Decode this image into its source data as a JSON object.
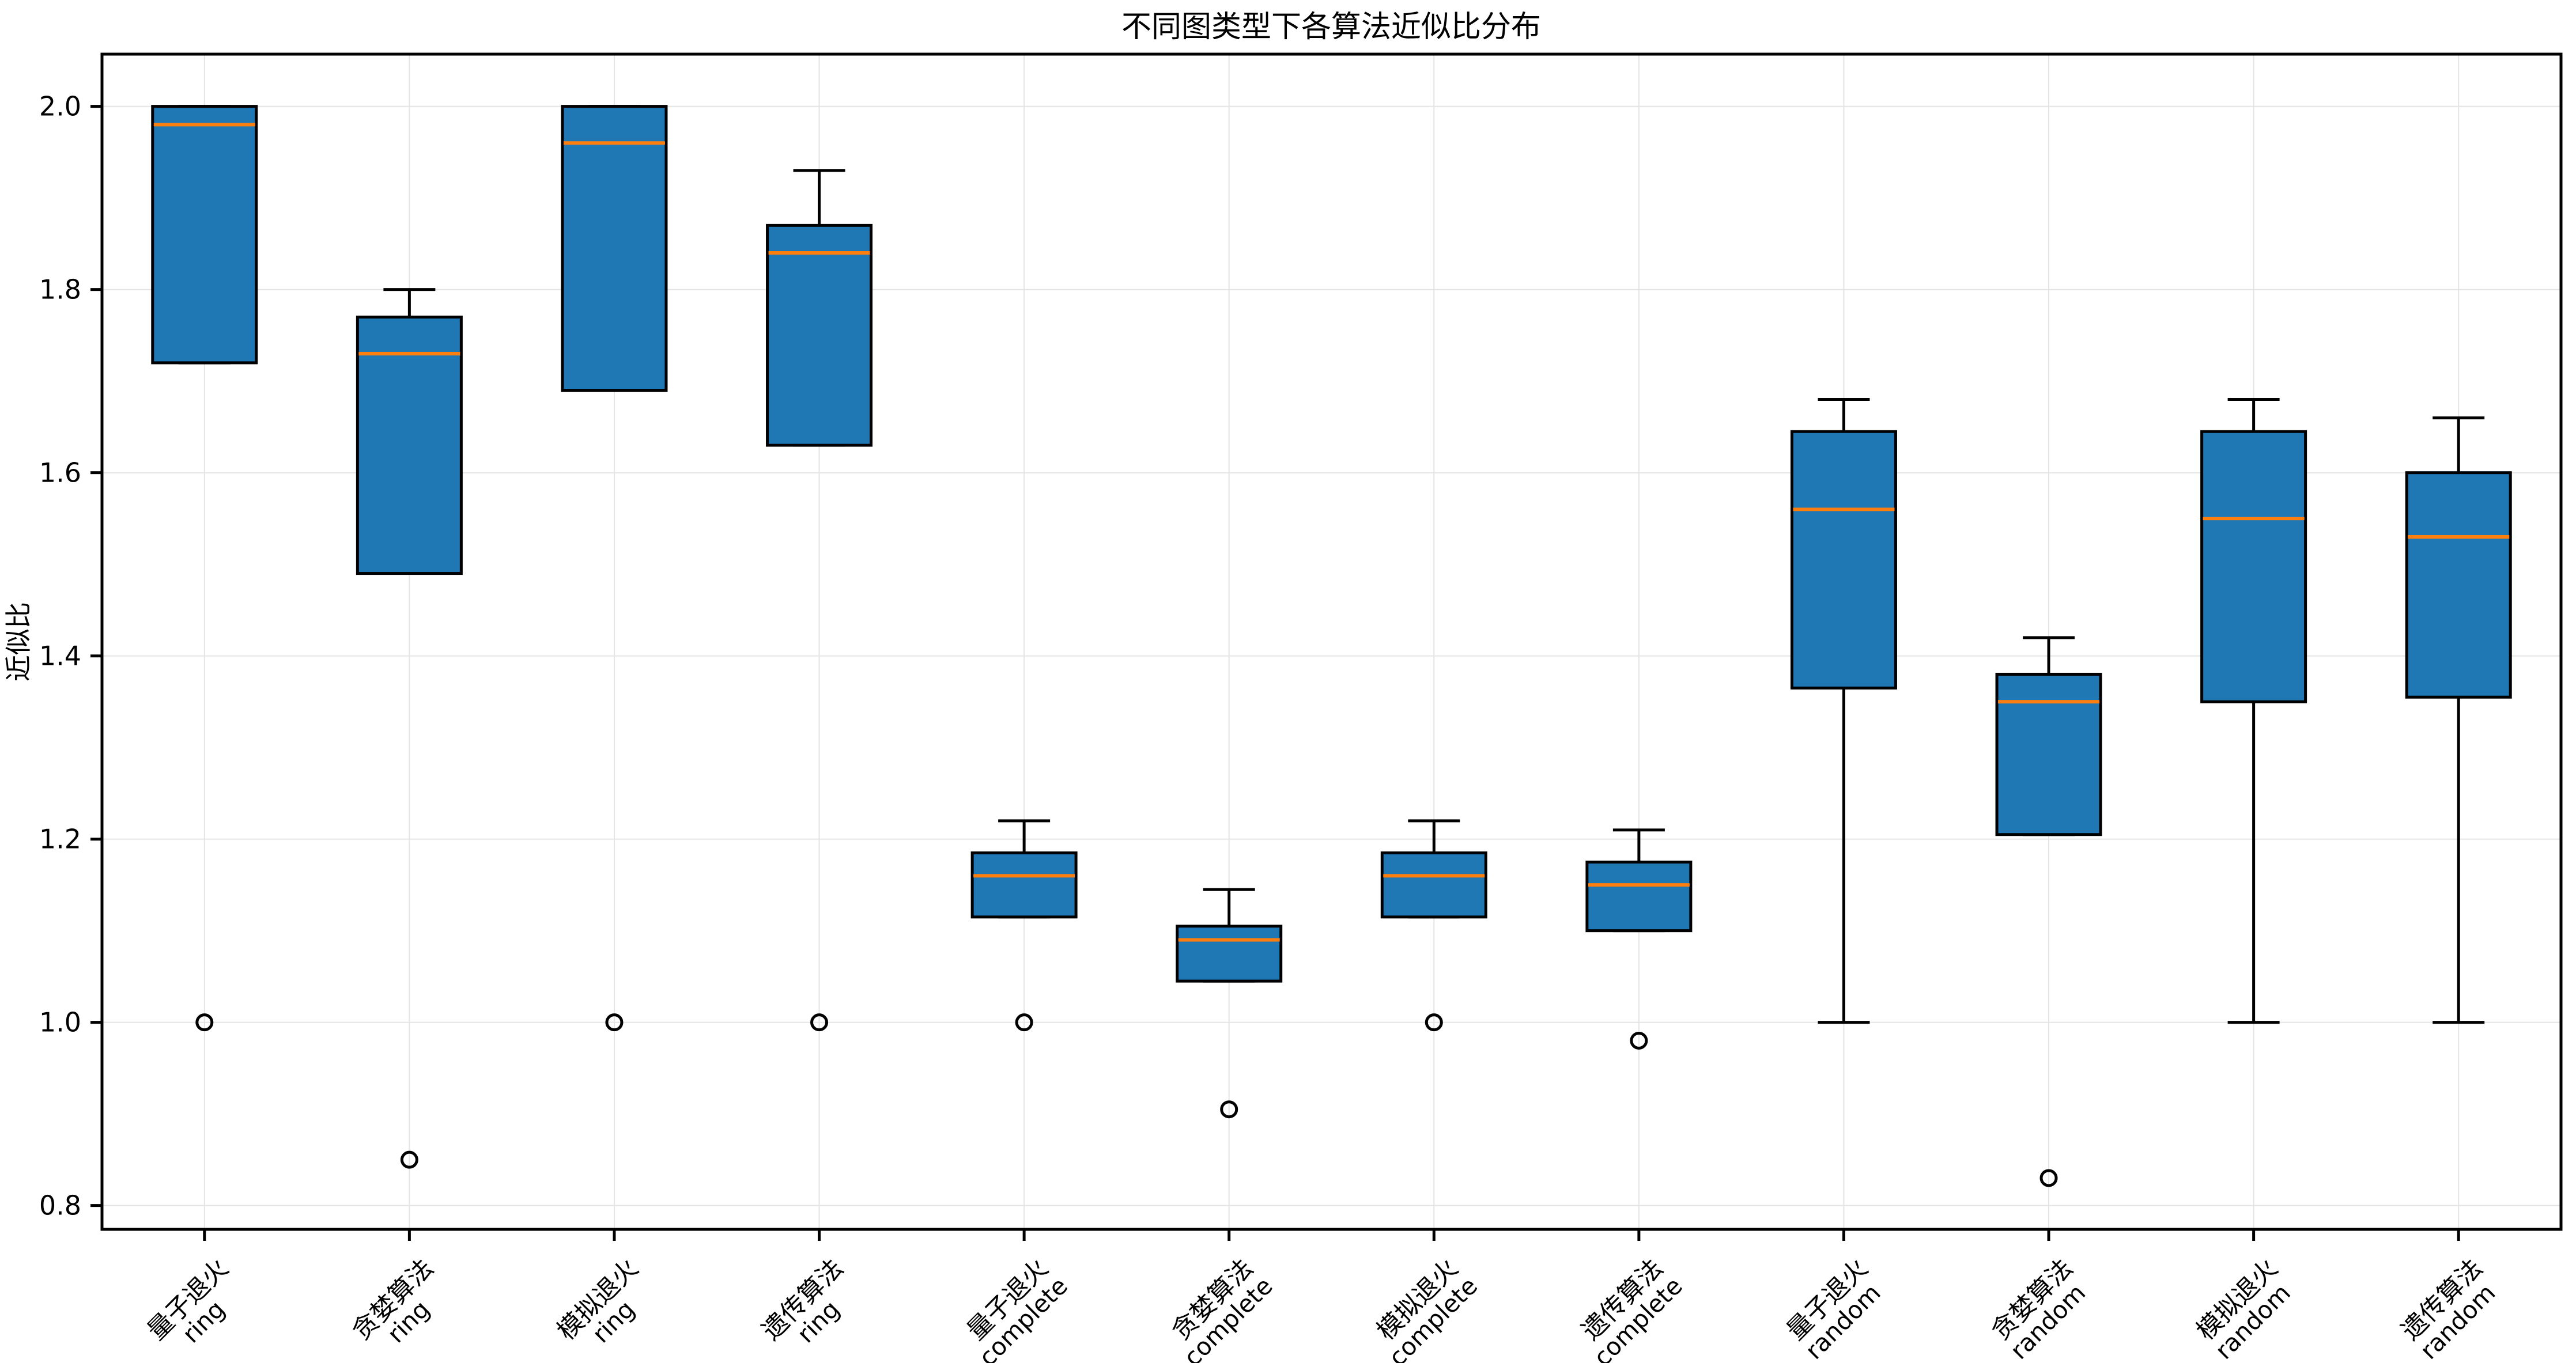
{
  "title": "不同图类型下各算法近似比分布",
  "ylabel": "近似比",
  "colors": {
    "box_fill": "#1f77b4",
    "median_line": "#ff7f0e",
    "box_edge": "#000000",
    "whisker": "#000000",
    "outlier_edge": "#000000",
    "grid": "#e4e4e4",
    "spine": "#000000",
    "background": "#ffffff"
  },
  "chart_data": {
    "type": "boxplot",
    "title": "不同图类型下各算法近似比分布",
    "xlabel": "",
    "ylabel": "近似比",
    "ylim": [
      0.774,
      2.057
    ],
    "yticks": [
      0.8,
      1.0,
      1.2,
      1.4,
      1.6,
      1.8,
      2.0
    ],
    "ytick_labels": [
      "0.8",
      "1.0",
      "1.2",
      "1.4",
      "1.6",
      "1.8",
      "2.0"
    ],
    "grid": true,
    "legend": false,
    "categories": [
      "量子退火 ring",
      "贪婪算法 ring",
      "模拟退火 ring",
      "遗传算法 ring",
      "量子退火 complete",
      "贪婪算法 complete",
      "模拟退火 complete",
      "遗传算法 complete",
      "量子退火 random",
      "贪婪算法 random",
      "模拟退火 random",
      "遗传算法 random"
    ],
    "boxes": [
      {
        "label_line1": "量子退火",
        "label_line2": "ring",
        "whisker_low": 1.72,
        "q1": 1.72,
        "median": 1.98,
        "q3": 2.0,
        "whisker_high": 2.0,
        "outliers": [
          1.0
        ]
      },
      {
        "label_line1": "贪婪算法",
        "label_line2": "ring",
        "whisker_low": 1.49,
        "q1": 1.49,
        "median": 1.73,
        "q3": 1.77,
        "whisker_high": 1.8,
        "outliers": [
          0.85
        ]
      },
      {
        "label_line1": "模拟退火",
        "label_line2": "ring",
        "whisker_low": 1.69,
        "q1": 1.69,
        "median": 1.96,
        "q3": 2.0,
        "whisker_high": 2.0,
        "outliers": [
          1.0
        ]
      },
      {
        "label_line1": "遗传算法",
        "label_line2": "ring",
        "whisker_low": 1.63,
        "q1": 1.63,
        "median": 1.84,
        "q3": 1.87,
        "whisker_high": 1.93,
        "outliers": [
          1.0
        ]
      },
      {
        "label_line1": "量子退火",
        "label_line2": "complete",
        "whisker_low": 1.115,
        "q1": 1.115,
        "median": 1.16,
        "q3": 1.185,
        "whisker_high": 1.22,
        "outliers": [
          1.0
        ]
      },
      {
        "label_line1": "贪婪算法",
        "label_line2": "complete",
        "whisker_low": 1.045,
        "q1": 1.045,
        "median": 1.09,
        "q3": 1.105,
        "whisker_high": 1.145,
        "outliers": [
          0.905
        ]
      },
      {
        "label_line1": "模拟退火",
        "label_line2": "complete",
        "whisker_low": 1.115,
        "q1": 1.115,
        "median": 1.16,
        "q3": 1.185,
        "whisker_high": 1.22,
        "outliers": [
          1.0
        ]
      },
      {
        "label_line1": "遗传算法",
        "label_line2": "complete",
        "whisker_low": 1.1,
        "q1": 1.1,
        "median": 1.15,
        "q3": 1.175,
        "whisker_high": 1.21,
        "outliers": [
          0.98
        ]
      },
      {
        "label_line1": "量子退火",
        "label_line2": "random",
        "whisker_low": 1.0,
        "q1": 1.365,
        "median": 1.56,
        "q3": 1.645,
        "whisker_high": 1.68,
        "outliers": []
      },
      {
        "label_line1": "贪婪算法",
        "label_line2": "random",
        "whisker_low": 1.205,
        "q1": 1.205,
        "median": 1.35,
        "q3": 1.38,
        "whisker_high": 1.42,
        "outliers": [
          0.83
        ]
      },
      {
        "label_line1": "模拟退火",
        "label_line2": "random",
        "whisker_low": 1.0,
        "q1": 1.35,
        "median": 1.55,
        "q3": 1.645,
        "whisker_high": 1.68,
        "outliers": []
      },
      {
        "label_line1": "遗传算法",
        "label_line2": "random",
        "whisker_low": 1.0,
        "q1": 1.355,
        "median": 1.53,
        "q3": 1.6,
        "whisker_high": 1.66,
        "outliers": []
      }
    ]
  },
  "layout_hints": {
    "legend_position": "none",
    "x_tick_rotation_deg": 45
  }
}
